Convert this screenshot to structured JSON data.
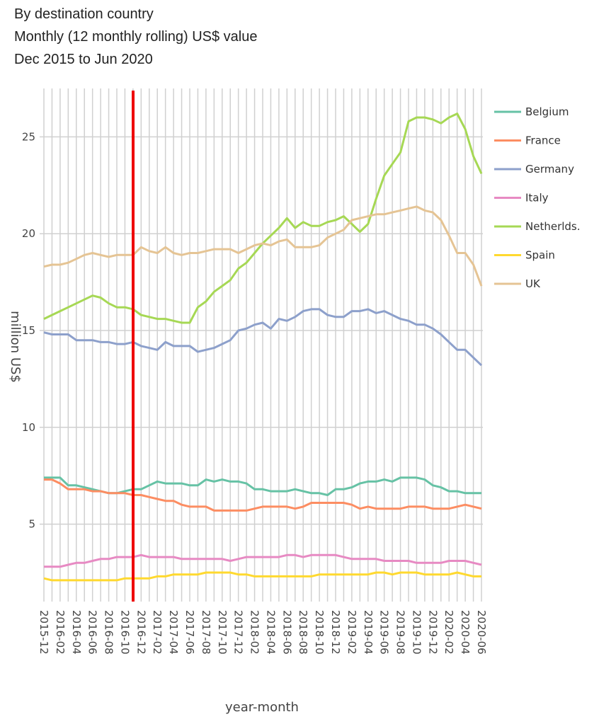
{
  "chart_data": {
    "type": "line",
    "title": [
      "By destination country",
      "Monthly (12 monthly rolling) US$ value",
      "Dec 2015 to Jun 2020"
    ],
    "xlabel": "year-month",
    "ylabel": "million US$",
    "categories": [
      "2015-12",
      null,
      "2016-02",
      null,
      "2016-04",
      null,
      "2016-06",
      null,
      "2016-08",
      null,
      "2016-10",
      null,
      "2016-12",
      null,
      "2017-02",
      null,
      "2017-04",
      null,
      "2017-06",
      null,
      "2017-08",
      null,
      "2017-10",
      null,
      "2017-12",
      null,
      "2018-02",
      null,
      "2018-04",
      null,
      "2018-06",
      null,
      "2018-08",
      null,
      "2018-10",
      null,
      "2018-12",
      null,
      "2019-02",
      null,
      "2019-04",
      null,
      "2019-06",
      null,
      "2019-08",
      null,
      "2019-10",
      null,
      "2019-12",
      null,
      "2020-02",
      null,
      "2020-04",
      null,
      "2020-06"
    ],
    "ylim": [
      1,
      27.5
    ],
    "yticks": [
      5,
      10,
      15,
      20,
      25
    ],
    "grid": true,
    "series": [
      {
        "name": "Belgium",
        "color": "#66c2a5",
        "values": [
          7.4,
          7.4,
          7.4,
          7.0,
          7.0,
          6.9,
          6.8,
          6.7,
          6.6,
          6.6,
          6.7,
          6.8,
          6.8,
          7.0,
          7.2,
          7.1,
          7.1,
          7.1,
          7.0,
          7.0,
          7.3,
          7.2,
          7.3,
          7.2,
          7.2,
          7.1,
          6.8,
          6.8,
          6.7,
          6.7,
          6.7,
          6.8,
          6.7,
          6.6,
          6.6,
          6.5,
          6.8,
          6.8,
          6.9,
          7.1,
          7.2,
          7.2,
          7.3,
          7.2,
          7.4,
          7.4,
          7.4,
          7.3,
          7.0,
          6.9,
          6.7,
          6.7,
          6.6,
          6.6,
          6.6
        ]
      },
      {
        "name": "France",
        "color": "#fc8d62",
        "values": [
          7.3,
          7.3,
          7.1,
          6.8,
          6.8,
          6.8,
          6.7,
          6.7,
          6.6,
          6.6,
          6.6,
          6.5,
          6.5,
          6.4,
          6.3,
          6.2,
          6.2,
          6.0,
          5.9,
          5.9,
          5.9,
          5.7,
          5.7,
          5.7,
          5.7,
          5.7,
          5.8,
          5.9,
          5.9,
          5.9,
          5.9,
          5.8,
          5.9,
          6.1,
          6.1,
          6.1,
          6.1,
          6.1,
          6.0,
          5.8,
          5.9,
          5.8,
          5.8,
          5.8,
          5.8,
          5.9,
          5.9,
          5.9,
          5.8,
          5.8,
          5.8,
          5.9,
          6.0,
          5.9,
          5.8
        ]
      },
      {
        "name": "Germany",
        "color": "#8da0cb",
        "values": [
          14.9,
          14.8,
          14.8,
          14.8,
          14.5,
          14.5,
          14.5,
          14.4,
          14.4,
          14.3,
          14.3,
          14.4,
          14.2,
          14.1,
          14.0,
          14.4,
          14.2,
          14.2,
          14.2,
          13.9,
          14.0,
          14.1,
          14.3,
          14.5,
          15.0,
          15.1,
          15.3,
          15.4,
          15.1,
          15.6,
          15.5,
          15.7,
          16.0,
          16.1,
          16.1,
          15.8,
          15.7,
          15.7,
          16.0,
          16.0,
          16.1,
          15.9,
          16.0,
          15.8,
          15.6,
          15.5,
          15.3,
          15.3,
          15.1,
          14.8,
          14.4,
          14.0,
          14.0,
          13.6,
          13.2
        ]
      },
      {
        "name": "Italy",
        "color": "#e78ac3",
        "values": [
          2.8,
          2.8,
          2.8,
          2.9,
          3.0,
          3.0,
          3.1,
          3.2,
          3.2,
          3.3,
          3.3,
          3.3,
          3.4,
          3.3,
          3.3,
          3.3,
          3.3,
          3.2,
          3.2,
          3.2,
          3.2,
          3.2,
          3.2,
          3.1,
          3.2,
          3.3,
          3.3,
          3.3,
          3.3,
          3.3,
          3.4,
          3.4,
          3.3,
          3.4,
          3.4,
          3.4,
          3.4,
          3.3,
          3.2,
          3.2,
          3.2,
          3.2,
          3.1,
          3.1,
          3.1,
          3.1,
          3.0,
          3.0,
          3.0,
          3.0,
          3.1,
          3.1,
          3.1,
          3.0,
          2.9
        ]
      },
      {
        "name": "Netherlds.",
        "color": "#a6d854",
        "values": [
          15.6,
          15.8,
          16.0,
          16.2,
          16.4,
          16.6,
          16.8,
          16.7,
          16.4,
          16.2,
          16.2,
          16.1,
          15.8,
          15.7,
          15.6,
          15.6,
          15.5,
          15.4,
          15.4,
          16.2,
          16.5,
          17.0,
          17.3,
          17.6,
          18.2,
          18.5,
          19.0,
          19.5,
          19.9,
          20.3,
          20.8,
          20.3,
          20.6,
          20.4,
          20.4,
          20.6,
          20.7,
          20.9,
          20.5,
          20.1,
          20.5,
          21.8,
          23.0,
          23.6,
          24.2,
          25.8,
          26.0,
          26.0,
          25.9,
          25.7,
          26.0,
          26.2,
          25.4,
          24.0,
          23.1
        ]
      },
      {
        "name": "Spain",
        "color": "#ffd92f",
        "values": [
          2.2,
          2.1,
          2.1,
          2.1,
          2.1,
          2.1,
          2.1,
          2.1,
          2.1,
          2.1,
          2.2,
          2.2,
          2.2,
          2.2,
          2.3,
          2.3,
          2.4,
          2.4,
          2.4,
          2.4,
          2.5,
          2.5,
          2.5,
          2.5,
          2.4,
          2.4,
          2.3,
          2.3,
          2.3,
          2.3,
          2.3,
          2.3,
          2.3,
          2.3,
          2.4,
          2.4,
          2.4,
          2.4,
          2.4,
          2.4,
          2.4,
          2.5,
          2.5,
          2.4,
          2.5,
          2.5,
          2.5,
          2.4,
          2.4,
          2.4,
          2.4,
          2.5,
          2.4,
          2.3,
          2.3
        ]
      },
      {
        "name": "UK",
        "color": "#e5c494",
        "values": [
          18.3,
          18.4,
          18.4,
          18.5,
          18.7,
          18.9,
          19.0,
          18.9,
          18.8,
          18.9,
          18.9,
          18.9,
          19.3,
          19.1,
          19.0,
          19.3,
          19.0,
          18.9,
          19.0,
          19.0,
          19.1,
          19.2,
          19.2,
          19.2,
          19.0,
          19.2,
          19.4,
          19.5,
          19.4,
          19.6,
          19.7,
          19.3,
          19.3,
          19.3,
          19.4,
          19.8,
          20.0,
          20.2,
          20.7,
          20.8,
          20.9,
          21.0,
          21.0,
          21.1,
          21.2,
          21.3,
          21.4,
          21.2,
          21.1,
          20.7,
          19.9,
          19.0,
          19.0,
          18.4,
          17.3
        ]
      }
    ]
  }
}
